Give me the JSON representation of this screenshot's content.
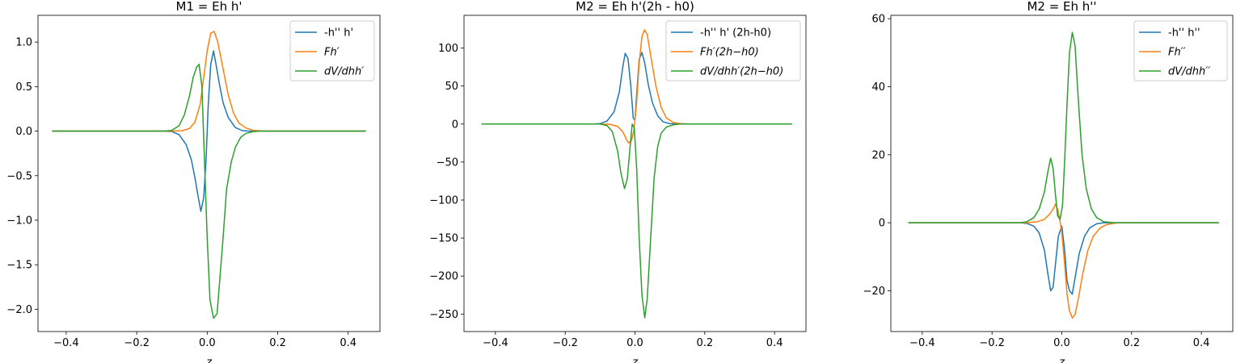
{
  "colors": {
    "blue": "#1f77b4",
    "orange": "#ff7f0e",
    "green": "#2ca02c"
  },
  "chart_data": [
    {
      "type": "line",
      "title": "M1 = Eh h'",
      "xlabel": "z",
      "ylabel": "",
      "xlim": [
        -0.48,
        0.49
      ],
      "ylim": [
        -2.25,
        1.3
      ],
      "xticks": [
        -0.4,
        -0.2,
        0.0,
        0.2,
        0.4
      ],
      "xtick_labels": [
        "−0.4",
        "−0.2",
        "0.0",
        "0.2",
        "0.4"
      ],
      "yticks": [
        -2.0,
        -1.5,
        -1.0,
        -0.5,
        0.0,
        0.5,
        1.0
      ],
      "ytick_labels": [
        "−2.0",
        "−1.5",
        "−1.0",
        "−0.5",
        "0.0",
        "0.5",
        "1.0"
      ],
      "legend": "upper right",
      "grid": false,
      "series": [
        {
          "name": "-h'' h'",
          "color": "#1f77b4",
          "points": [
            [
              -0.44,
              0
            ],
            [
              -0.12,
              0
            ],
            [
              -0.1,
              -0.005
            ],
            [
              -0.08,
              -0.04
            ],
            [
              -0.06,
              -0.15
            ],
            [
              -0.045,
              -0.32
            ],
            [
              -0.035,
              -0.52
            ],
            [
              -0.025,
              -0.75
            ],
            [
              -0.018,
              -0.9
            ],
            [
              -0.01,
              -0.75
            ],
            [
              -0.003,
              -0.3
            ],
            [
              0.003,
              0.3
            ],
            [
              0.01,
              0.75
            ],
            [
              0.018,
              0.9
            ],
            [
              0.025,
              0.75
            ],
            [
              0.035,
              0.52
            ],
            [
              0.045,
              0.32
            ],
            [
              0.06,
              0.15
            ],
            [
              0.08,
              0.04
            ],
            [
              0.1,
              0.005
            ],
            [
              0.12,
              0
            ],
            [
              0.45,
              0
            ]
          ]
        },
        {
          "name": "Fh′",
          "color": "#ff7f0e",
          "points": [
            [
              -0.44,
              0
            ],
            [
              -0.1,
              0
            ],
            [
              -0.07,
              0.005
            ],
            [
              -0.05,
              0.03
            ],
            [
              -0.035,
              0.1
            ],
            [
              -0.02,
              0.3
            ],
            [
              -0.01,
              0.6
            ],
            [
              0.0,
              0.9
            ],
            [
              0.01,
              1.1
            ],
            [
              0.02,
              1.12
            ],
            [
              0.03,
              1.0
            ],
            [
              0.045,
              0.7
            ],
            [
              0.06,
              0.4
            ],
            [
              0.075,
              0.2
            ],
            [
              0.09,
              0.09
            ],
            [
              0.11,
              0.035
            ],
            [
              0.13,
              0.01
            ],
            [
              0.16,
              0
            ],
            [
              0.45,
              0
            ]
          ]
        },
        {
          "name": "dV/dhh′",
          "color": "#2ca02c",
          "points": [
            [
              -0.44,
              0
            ],
            [
              -0.12,
              0
            ],
            [
              -0.1,
              0.01
            ],
            [
              -0.08,
              0.06
            ],
            [
              -0.065,
              0.18
            ],
            [
              -0.05,
              0.4
            ],
            [
              -0.04,
              0.6
            ],
            [
              -0.03,
              0.72
            ],
            [
              -0.023,
              0.75
            ],
            [
              -0.015,
              0.5
            ],
            [
              -0.008,
              -0.3
            ],
            [
              0.0,
              -1.2
            ],
            [
              0.008,
              -1.9
            ],
            [
              0.018,
              -2.1
            ],
            [
              0.028,
              -2.05
            ],
            [
              0.035,
              -1.7
            ],
            [
              0.045,
              -1.2
            ],
            [
              0.055,
              -0.65
            ],
            [
              0.068,
              -0.35
            ],
            [
              0.08,
              -0.18
            ],
            [
              0.095,
              -0.07
            ],
            [
              0.11,
              -0.025
            ],
            [
              0.13,
              -0.006
            ],
            [
              0.15,
              0
            ],
            [
              0.45,
              0
            ]
          ]
        }
      ]
    },
    {
      "type": "line",
      "title": "M2 = Eh h'(2h - h0)",
      "xlabel": "z",
      "ylabel": "",
      "xlim": [
        -0.49,
        0.49
      ],
      "ylim": [
        -273,
        143
      ],
      "xticks": [
        -0.4,
        -0.2,
        0.0,
        0.2,
        0.4
      ],
      "xtick_labels": [
        "−0.4",
        "−0.2",
        "0.0",
        "0.2",
        "0.4"
      ],
      "yticks": [
        -250,
        -200,
        -150,
        -100,
        -50,
        0,
        50,
        100
      ],
      "ytick_labels": [
        "−250",
        "−200",
        "−150",
        "−100",
        "−50",
        "0",
        "50",
        "100"
      ],
      "legend": "upper right",
      "grid": false,
      "series": [
        {
          "name": "-h'' h' (2h-h0)",
          "color": "#1f77b4",
          "points": [
            [
              -0.44,
              0
            ],
            [
              -0.12,
              0
            ],
            [
              -0.1,
              0.5
            ],
            [
              -0.08,
              4
            ],
            [
              -0.06,
              16
            ],
            [
              -0.045,
              42
            ],
            [
              -0.035,
              75
            ],
            [
              -0.028,
              93
            ],
            [
              -0.02,
              86
            ],
            [
              -0.012,
              50
            ],
            [
              -0.005,
              8
            ],
            [
              0.0,
              5
            ],
            [
              0.005,
              40
            ],
            [
              0.012,
              85
            ],
            [
              0.02,
              94
            ],
            [
              0.028,
              80
            ],
            [
              0.038,
              52
            ],
            [
              0.05,
              28
            ],
            [
              0.065,
              11
            ],
            [
              0.08,
              3
            ],
            [
              0.1,
              0.5
            ],
            [
              0.12,
              0
            ],
            [
              0.45,
              0
            ]
          ]
        },
        {
          "name": "Fh′(2h−h0)",
          "color": "#ff7f0e",
          "points": [
            [
              -0.44,
              0
            ],
            [
              -0.1,
              0
            ],
            [
              -0.07,
              -0.5
            ],
            [
              -0.05,
              -3
            ],
            [
              -0.035,
              -10
            ],
            [
              -0.025,
              -20
            ],
            [
              -0.018,
              -25
            ],
            [
              -0.01,
              -22
            ],
            [
              -0.003,
              -8
            ],
            [
              0.005,
              30
            ],
            [
              0.012,
              80
            ],
            [
              0.02,
              115
            ],
            [
              0.027,
              124
            ],
            [
              0.035,
              118
            ],
            [
              0.045,
              90
            ],
            [
              0.06,
              50
            ],
            [
              0.075,
              22
            ],
            [
              0.09,
              8
            ],
            [
              0.11,
              2
            ],
            [
              0.13,
              0.5
            ],
            [
              0.16,
              0
            ],
            [
              0.45,
              0
            ]
          ]
        },
        {
          "name": "dV/dhh′(2h−h0)",
          "color": "#2ca02c",
          "points": [
            [
              -0.44,
              0
            ],
            [
              -0.1,
              0
            ],
            [
              -0.08,
              -2
            ],
            [
              -0.065,
              -10
            ],
            [
              -0.05,
              -35
            ],
            [
              -0.04,
              -65
            ],
            [
              -0.03,
              -85
            ],
            [
              -0.022,
              -72
            ],
            [
              -0.015,
              -35
            ],
            [
              -0.008,
              0
            ],
            [
              -0.002,
              -5
            ],
            [
              0.005,
              -60
            ],
            [
              0.012,
              -150
            ],
            [
              0.02,
              -225
            ],
            [
              0.028,
              -255
            ],
            [
              0.035,
              -230
            ],
            [
              0.045,
              -150
            ],
            [
              0.055,
              -70
            ],
            [
              0.065,
              -30
            ],
            [
              0.075,
              -12
            ],
            [
              0.09,
              -4
            ],
            [
              0.11,
              -1
            ],
            [
              0.13,
              0
            ],
            [
              0.45,
              0
            ]
          ]
        }
      ]
    },
    {
      "type": "line",
      "title": "M2 = Eh h''",
      "xlabel": "z",
      "ylabel": "",
      "xlim": [
        -0.49,
        0.49
      ],
      "ylim": [
        -32,
        61
      ],
      "xticks": [
        -0.4,
        -0.2,
        0.0,
        0.2,
        0.4
      ],
      "xtick_labels": [
        "−0.4",
        "−0.2",
        "0.0",
        "0.2",
        "0.4"
      ],
      "yticks": [
        -20,
        0,
        20,
        40,
        60
      ],
      "ytick_labels": [
        "−20",
        "0",
        "20",
        "40",
        "60"
      ],
      "legend": "upper right",
      "grid": false,
      "series": [
        {
          "name": "-h'' h''",
          "color": "#1f77b4",
          "points": [
            [
              -0.44,
              0
            ],
            [
              -0.12,
              0
            ],
            [
              -0.1,
              -0.2
            ],
            [
              -0.08,
              -1
            ],
            [
              -0.065,
              -3
            ],
            [
              -0.05,
              -8
            ],
            [
              -0.04,
              -15
            ],
            [
              -0.032,
              -20
            ],
            [
              -0.025,
              -19
            ],
            [
              -0.018,
              -12
            ],
            [
              -0.01,
              -4
            ],
            [
              0.0,
              -1
            ],
            [
              0.008,
              -8
            ],
            [
              0.015,
              -17
            ],
            [
              0.022,
              -20
            ],
            [
              0.03,
              -21
            ],
            [
              0.04,
              -15
            ],
            [
              0.05,
              -9
            ],
            [
              0.065,
              -4
            ],
            [
              0.08,
              -1.5
            ],
            [
              0.1,
              -0.3
            ],
            [
              0.12,
              0
            ],
            [
              0.45,
              0
            ]
          ]
        },
        {
          "name": "Fh′′",
          "color": "#ff7f0e",
          "points": [
            [
              -0.44,
              0
            ],
            [
              -0.1,
              0
            ],
            [
              -0.07,
              0.3
            ],
            [
              -0.05,
              1
            ],
            [
              -0.035,
              2.5
            ],
            [
              -0.025,
              4
            ],
            [
              -0.018,
              5.5
            ],
            [
              -0.012,
              4
            ],
            [
              -0.006,
              1
            ],
            [
              0.0,
              -3
            ],
            [
              0.008,
              -12
            ],
            [
              0.015,
              -21
            ],
            [
              0.022,
              -26
            ],
            [
              0.03,
              -28
            ],
            [
              0.038,
              -27
            ],
            [
              0.048,
              -22
            ],
            [
              0.06,
              -15
            ],
            [
              0.075,
              -8
            ],
            [
              0.09,
              -4
            ],
            [
              0.11,
              -1.5
            ],
            [
              0.13,
              -0.5
            ],
            [
              0.16,
              0
            ],
            [
              0.45,
              0
            ]
          ]
        },
        {
          "name": "dV/dhh′′",
          "color": "#2ca02c",
          "points": [
            [
              -0.44,
              0
            ],
            [
              -0.12,
              0
            ],
            [
              -0.1,
              0.3
            ],
            [
              -0.08,
              1.5
            ],
            [
              -0.065,
              4
            ],
            [
              -0.05,
              9
            ],
            [
              -0.04,
              15
            ],
            [
              -0.032,
              19
            ],
            [
              -0.025,
              16
            ],
            [
              -0.018,
              8
            ],
            [
              -0.012,
              2
            ],
            [
              -0.005,
              1
            ],
            [
              0.002,
              5
            ],
            [
              0.008,
              18
            ],
            [
              0.015,
              35
            ],
            [
              0.022,
              50
            ],
            [
              0.03,
              56
            ],
            [
              0.038,
              52
            ],
            [
              0.048,
              35
            ],
            [
              0.058,
              20
            ],
            [
              0.07,
              10
            ],
            [
              0.085,
              4
            ],
            [
              0.1,
              1.5
            ],
            [
              0.12,
              0.3
            ],
            [
              0.15,
              0
            ],
            [
              0.45,
              0
            ]
          ]
        }
      ]
    }
  ]
}
